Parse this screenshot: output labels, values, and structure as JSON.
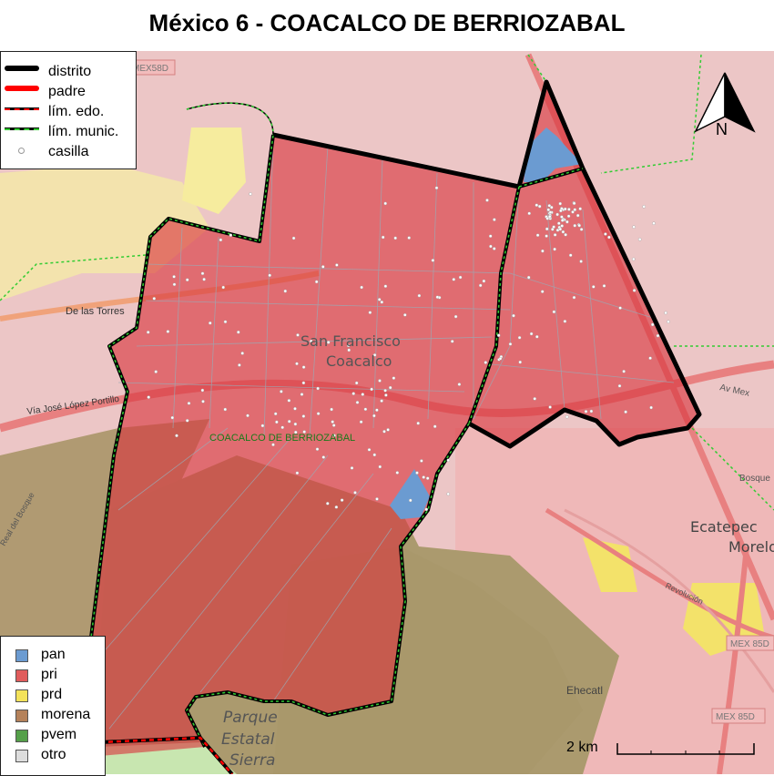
{
  "title": "México 6 - COACALCO DE BERRIOZABAL",
  "legend_lines": [
    {
      "label": "distrito",
      "color": "#000000",
      "icon": "thick-black-line"
    },
    {
      "label": "padre",
      "color": "#ff0000",
      "icon": "thick-red-line"
    },
    {
      "label": "lím. edo.",
      "color": "#ff0000",
      "icon": "red-black-dashed-line"
    },
    {
      "label": "lím. munic.",
      "color": "#33cc33",
      "icon": "green-black-dashed-line"
    },
    {
      "label": "casilla",
      "color": "#ffffff",
      "icon": "circle-marker"
    }
  ],
  "legend_parties": [
    {
      "label": "pan",
      "color": "#6b9bd1"
    },
    {
      "label": "pri",
      "color": "#e05c5c"
    },
    {
      "label": "prd",
      "color": "#f3e25a"
    },
    {
      "label": "morena",
      "color": "#b5825b"
    },
    {
      "label": "pvem",
      "color": "#55a04a"
    },
    {
      "label": "otro",
      "color": "#dddddd"
    }
  ],
  "north_label": "N",
  "scale_label": "2 km",
  "municipality_label": "COACALCO DE BERRIOZABAL",
  "basemap_labels": {
    "san_francisco": "San Francisco",
    "coacalco": "Coacalco",
    "de_las_torres": "De las Torres",
    "via_lopez_portillo": "Vía José López Portillo",
    "ecatepec": "Ecatepec",
    "morelos": "Morelos",
    "parque": "Parque",
    "estatal": "Estatal",
    "sierra": "Sierra",
    "ehecatl": "Ehecatl",
    "mex58d": "MEX58D",
    "mex85d": "MEX 85D",
    "mex85d_2": "MEX 85D",
    "av_mexico": "Av Mex",
    "bosque": "Bosque",
    "revolucion": "Revolución",
    "real_del_bosque": "Real del Bosque"
  }
}
